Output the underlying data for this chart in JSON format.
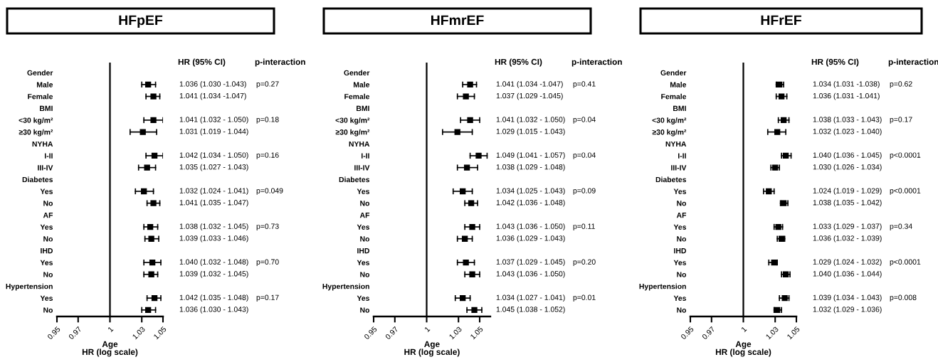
{
  "chart_data": [
    {
      "type": "scatter",
      "orientation": "horizontal",
      "title": "HFpEF",
      "xlabel": "Age\nHR (log scale)",
      "marker": "square",
      "categories": [
        "Gender",
        "Male",
        "Female",
        "BMI",
        "<30 kg/m²",
        "≥30 kg/m²",
        "NYHA",
        "I-II",
        "III-IV",
        "Diabetes",
        "Yes",
        "No",
        "AF",
        "Yes",
        "No",
        "IHD",
        "Yes",
        "No",
        "Hypertension",
        "Yes",
        "No"
      ],
      "series": [
        {
          "color": "#000000",
          "values": [
            null,
            1.036,
            1.041,
            null,
            1.041,
            1.031,
            null,
            1.042,
            1.035,
            null,
            1.032,
            1.041,
            null,
            1.038,
            1.039,
            null,
            1.04,
            1.039,
            null,
            1.042,
            1.036
          ],
          "errors": [
            null,
            [
              1.03,
              1.043
            ],
            [
              1.034,
              1.047
            ],
            null,
            [
              1.032,
              1.05
            ],
            [
              1.019,
              1.044
            ],
            null,
            [
              1.034,
              1.05
            ],
            [
              1.027,
              1.043
            ],
            null,
            [
              1.024,
              1.041
            ],
            [
              1.035,
              1.047
            ],
            null,
            [
              1.032,
              1.045
            ],
            [
              1.033,
              1.046
            ],
            null,
            [
              1.032,
              1.048
            ],
            [
              1.032,
              1.045
            ],
            null,
            [
              1.035,
              1.048
            ],
            [
              1.03,
              1.043
            ]
          ],
          "value_labels": [
            null,
            "1.036 (1.030 -1.043)",
            "1.041 (1.034 -1.047)",
            null,
            "1.041 (1.032 - 1.050)",
            "1.031 (1.019 - 1.044)",
            null,
            "1.042 (1.034 - 1.050)",
            "1.035 (1.027 - 1.043)",
            null,
            "1.032 (1.024 - 1.041)",
            "1.041 (1.035 - 1.047)",
            null,
            "1.038 (1.032 - 1.045)",
            "1.039 (1.033 - 1.046)",
            null,
            "1.040 (1.032 - 1.048)",
            "1.039 (1.032 - 1.045)",
            null,
            "1.042 (1.035 - 1.048)",
            "1.036 (1.030 - 1.043)"
          ]
        }
      ],
      "xlim": [
        0.95,
        1.05
      ],
      "xticks": [
        0.95,
        0.97,
        1,
        1.03,
        1.05
      ],
      "ref_lines": [
        {
          "axis": "x",
          "value": 1,
          "color": "#000000"
        }
      ],
      "annotations": [
        "HR (95% CI)",
        "p-interaction",
        "p=0.27",
        "p=0.18",
        "p=0.16",
        "p=0.049",
        "p=0.73",
        "p=0.70",
        "p=0.17"
      ]
    },
    {
      "type": "scatter",
      "orientation": "horizontal",
      "title": "HFmrEF",
      "xlabel": "Age\nHR (log scale)",
      "marker": "square",
      "categories": [
        "Gender",
        "Male",
        "Female",
        "BMI",
        "<30 kg/m²",
        "≥30 kg/m²",
        "NYHA",
        "I-II",
        "III-IV",
        "Diabetes",
        "Yes",
        "No",
        "AF",
        "Yes",
        "No",
        "IHD",
        "Yes",
        "No",
        "Hypertension",
        "Yes",
        "No"
      ],
      "series": [
        {
          "color": "#000000",
          "values": [
            null,
            1.041,
            1.037,
            null,
            1.041,
            1.029,
            null,
            1.049,
            1.038,
            null,
            1.034,
            1.042,
            null,
            1.043,
            1.036,
            null,
            1.037,
            1.043,
            null,
            1.034,
            1.045
          ],
          "errors": [
            null,
            [
              1.034,
              1.047
            ],
            [
              1.029,
              1.045
            ],
            null,
            [
              1.032,
              1.05
            ],
            [
              1.015,
              1.043
            ],
            null,
            [
              1.041,
              1.057
            ],
            [
              1.029,
              1.048
            ],
            null,
            [
              1.025,
              1.043
            ],
            [
              1.036,
              1.048
            ],
            null,
            [
              1.036,
              1.05
            ],
            [
              1.029,
              1.043
            ],
            null,
            [
              1.029,
              1.045
            ],
            [
              1.036,
              1.05
            ],
            null,
            [
              1.027,
              1.041
            ],
            [
              1.038,
              1.052
            ]
          ],
          "value_labels": [
            null,
            "1.041 (1.034 -1.047)",
            "1.037 (1.029 -1.045)",
            null,
            "1.041 (1.032 - 1.050)",
            "1.029 (1.015 - 1.043)",
            null,
            "1.049 (1.041 - 1.057)",
            "1.038 (1.029 - 1.048)",
            null,
            "1.034 (1.025 - 1.043)",
            "1.042 (1.036 - 1.048)",
            null,
            "1.043 (1.036 - 1.050)",
            "1.036 (1.029 - 1.043)",
            null,
            "1.037 (1.029 - 1.045)",
            "1.043 (1.036 - 1.050)",
            null,
            "1.034 (1.027 - 1.041)",
            "1.045 (1.038 - 1.052)"
          ]
        }
      ],
      "xlim": [
        0.95,
        1.06
      ],
      "xticks": [
        0.95,
        0.97,
        1,
        1.03,
        1.05
      ],
      "ref_lines": [
        {
          "axis": "x",
          "value": 1,
          "color": "#000000"
        }
      ],
      "annotations": [
        "HR (95% CI)",
        "p-interaction",
        "p=0.41",
        "p=0.04",
        "p=0.04",
        "p=0.09",
        "p=0.11",
        "p=0.20",
        "p=0.01"
      ]
    },
    {
      "type": "scatter",
      "orientation": "horizontal",
      "title": "HFrEF",
      "xlabel": "Age\nHR (log scale)",
      "marker": "square",
      "categories": [
        "Gender",
        "Male",
        "Female",
        "BMI",
        "<30 kg/m²",
        "≥30 kg/m²",
        "NYHA",
        "I-II",
        "III-IV",
        "Diabetes",
        "Yes",
        "No",
        "AF",
        "Yes",
        "No",
        "IHD",
        "Yes",
        "No",
        "Hypertension",
        "Yes",
        "No"
      ],
      "series": [
        {
          "color": "#000000",
          "values": [
            null,
            1.034,
            1.036,
            null,
            1.038,
            1.032,
            null,
            1.04,
            1.03,
            null,
            1.024,
            1.038,
            null,
            1.033,
            1.036,
            null,
            1.029,
            1.04,
            null,
            1.039,
            1.032
          ],
          "errors": [
            null,
            [
              1.031,
              1.038
            ],
            [
              1.031,
              1.041
            ],
            null,
            [
              1.033,
              1.043
            ],
            [
              1.023,
              1.04
            ],
            null,
            [
              1.036,
              1.045
            ],
            [
              1.026,
              1.034
            ],
            null,
            [
              1.019,
              1.029
            ],
            [
              1.035,
              1.042
            ],
            null,
            [
              1.029,
              1.037
            ],
            [
              1.032,
              1.039
            ],
            null,
            [
              1.024,
              1.032
            ],
            [
              1.036,
              1.044
            ],
            null,
            [
              1.034,
              1.043
            ],
            [
              1.029,
              1.036
            ]
          ],
          "value_labels": [
            null,
            "1.034 (1.031 -1.038)",
            "1.036 (1.031 -1.041)",
            null,
            "1.038 (1.033 - 1.043)",
            "1.032 (1.023 - 1.040)",
            null,
            "1.040 (1.036 - 1.045)",
            "1.030 (1.026 - 1.034)",
            null,
            "1.024 (1.019 - 1.029)",
            "1.038 (1.035 - 1.042)",
            null,
            "1.033 (1.029 - 1.037)",
            "1.036 (1.032 - 1.039)",
            null,
            "1.029 (1.024 - 1.032)",
            "1.040 (1.036 - 1.044)",
            null,
            "1.039 (1.034 - 1.043)",
            "1.032 (1.029 - 1.036)"
          ]
        }
      ],
      "xlim": [
        0.95,
        1.05
      ],
      "xticks": [
        0.95,
        0.97,
        1,
        1.03,
        1.05
      ],
      "ref_lines": [
        {
          "axis": "x",
          "value": 1,
          "color": "#000000"
        }
      ],
      "annotations": [
        "HR (95% CI)",
        "p-interaction",
        "p=0.62",
        "p=0.17",
        "p<0.0001",
        "p<0.0001",
        "p=0.34",
        "p<0.0001",
        "p=0.008"
      ]
    }
  ]
}
